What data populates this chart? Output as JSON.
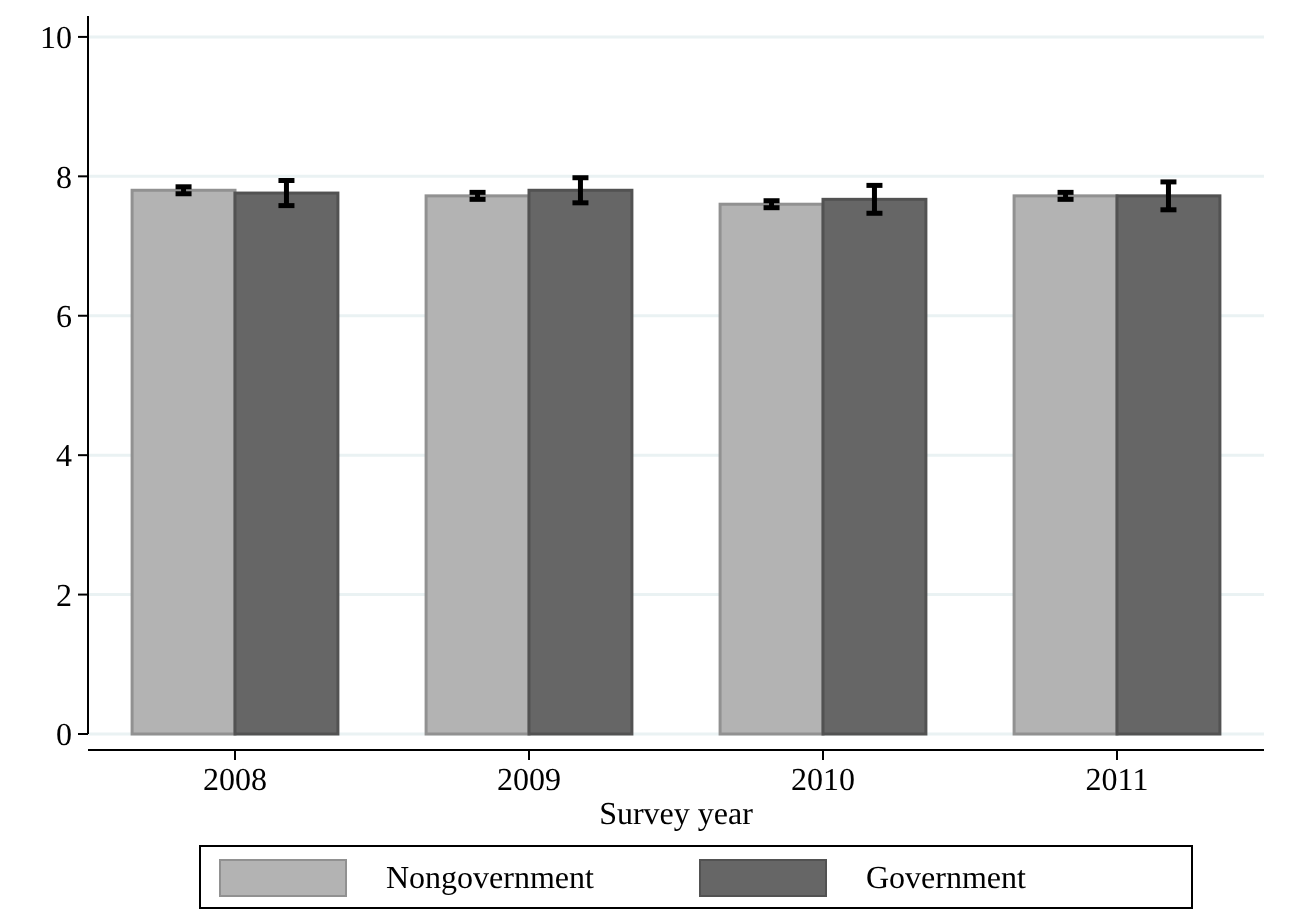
{
  "chart_data": {
    "type": "bar",
    "xlabel": "Survey year",
    "categories": [
      "2008",
      "2009",
      "2010",
      "2011"
    ],
    "series": [
      {
        "name": "Nongovernment",
        "color": "#b3b3b3",
        "values": [
          7.8,
          7.72,
          7.6,
          7.72
        ],
        "errors": [
          0.05,
          0.05,
          0.05,
          0.05
        ]
      },
      {
        "name": "Government",
        "color": "#666666",
        "values": [
          7.76,
          7.8,
          7.67,
          7.72
        ],
        "errors": [
          0.18,
          0.18,
          0.2,
          0.2
        ]
      }
    ],
    "ylim": [
      0,
      10.3
    ],
    "yticks": [
      0,
      2,
      4,
      6,
      8,
      10
    ],
    "grid": "y",
    "legend": "bottom"
  }
}
